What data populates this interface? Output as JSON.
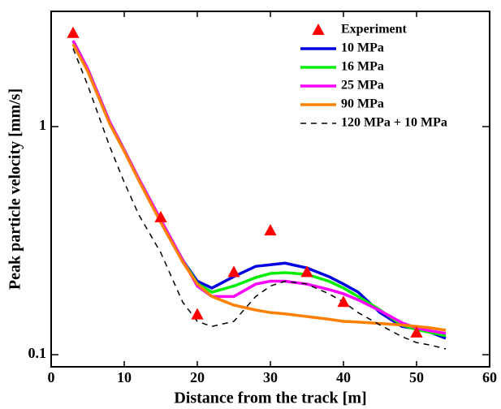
{
  "chart_data": {
    "type": "line",
    "xlabel": "Distance from the track [m]",
    "ylabel": "Peak particle velocity [mm/s]",
    "xlim": [
      0,
      60
    ],
    "xticks": [
      0,
      10,
      20,
      30,
      40,
      50,
      60
    ],
    "ylim": [
      0.0885,
      3.2
    ],
    "yticks": [
      0.1,
      1
    ],
    "log_y": true,
    "legend": "upper right",
    "series": [
      {
        "name": "Experiment",
        "type": "scatter",
        "marker": "triangle",
        "color": "#ff0000",
        "x": [
          3,
          15,
          20,
          25,
          30,
          35,
          40,
          50
        ],
        "values": [
          2.57,
          0.4,
          0.15,
          0.23,
          0.35,
          0.23,
          0.17,
          0.125
        ]
      },
      {
        "name": "10 MPa",
        "type": "line",
        "color": "#0000e0",
        "x": [
          3,
          5,
          8,
          10,
          12,
          15,
          18,
          20,
          22,
          25,
          28,
          30,
          32,
          35,
          38,
          40,
          42,
          45,
          48,
          50,
          52,
          54
        ],
        "values": [
          2.38,
          1.79,
          1.05,
          0.79,
          0.59,
          0.39,
          0.26,
          0.21,
          0.196,
          0.22,
          0.244,
          0.248,
          0.252,
          0.24,
          0.22,
          0.204,
          0.188,
          0.153,
          0.133,
          0.13,
          0.125,
          0.118
        ]
      },
      {
        "name": "16 MPa",
        "type": "line",
        "color": "#00ee00",
        "x": [
          3,
          5,
          8,
          10,
          12,
          15,
          18,
          20,
          22,
          25,
          28,
          30,
          32,
          35,
          38,
          40,
          42,
          45,
          48,
          50,
          52,
          54
        ],
        "values": [
          2.38,
          1.79,
          1.05,
          0.79,
          0.59,
          0.39,
          0.26,
          0.205,
          0.188,
          0.2,
          0.218,
          0.227,
          0.229,
          0.225,
          0.21,
          0.196,
          0.18,
          0.157,
          0.135,
          0.129,
          0.125,
          0.121
        ]
      },
      {
        "name": "25 MPa",
        "type": "line",
        "color": "#ff00ff",
        "x": [
          3,
          5,
          8,
          10,
          12,
          15,
          18,
          20,
          22,
          25,
          28,
          30,
          32,
          35,
          38,
          40,
          42,
          45,
          48,
          50,
          52,
          54
        ],
        "values": [
          2.38,
          1.79,
          1.05,
          0.79,
          0.59,
          0.39,
          0.26,
          0.2,
          0.18,
          0.18,
          0.204,
          0.21,
          0.21,
          0.204,
          0.193,
          0.185,
          0.174,
          0.156,
          0.138,
          0.131,
          0.127,
          0.124
        ]
      },
      {
        "name": "90 MPa",
        "type": "line",
        "color": "#ff8000",
        "x": [
          3,
          5,
          8,
          10,
          12,
          15,
          18,
          20,
          22,
          25,
          28,
          30,
          32,
          35,
          38,
          40,
          42,
          45,
          48,
          50,
          52,
          54
        ],
        "values": [
          2.3,
          1.75,
          1.03,
          0.78,
          0.58,
          0.38,
          0.255,
          0.204,
          0.18,
          0.165,
          0.157,
          0.153,
          0.151,
          0.147,
          0.143,
          0.14,
          0.139,
          0.137,
          0.135,
          0.133,
          0.131,
          0.128
        ]
      },
      {
        "name": "120 MPa + 10 MPa",
        "type": "line",
        "dash": "dashed",
        "color": "#000000",
        "x": [
          3,
          5,
          8,
          10,
          12,
          15,
          18,
          20,
          22,
          25,
          28,
          30,
          32,
          35,
          38,
          40,
          42,
          45,
          48,
          50,
          52,
          54
        ],
        "values": [
          2.2,
          1.52,
          0.82,
          0.57,
          0.41,
          0.28,
          0.17,
          0.14,
          0.133,
          0.14,
          0.18,
          0.2,
          0.21,
          0.204,
          0.185,
          0.17,
          0.153,
          0.135,
          0.12,
          0.113,
          0.11,
          0.106
        ]
      }
    ]
  }
}
